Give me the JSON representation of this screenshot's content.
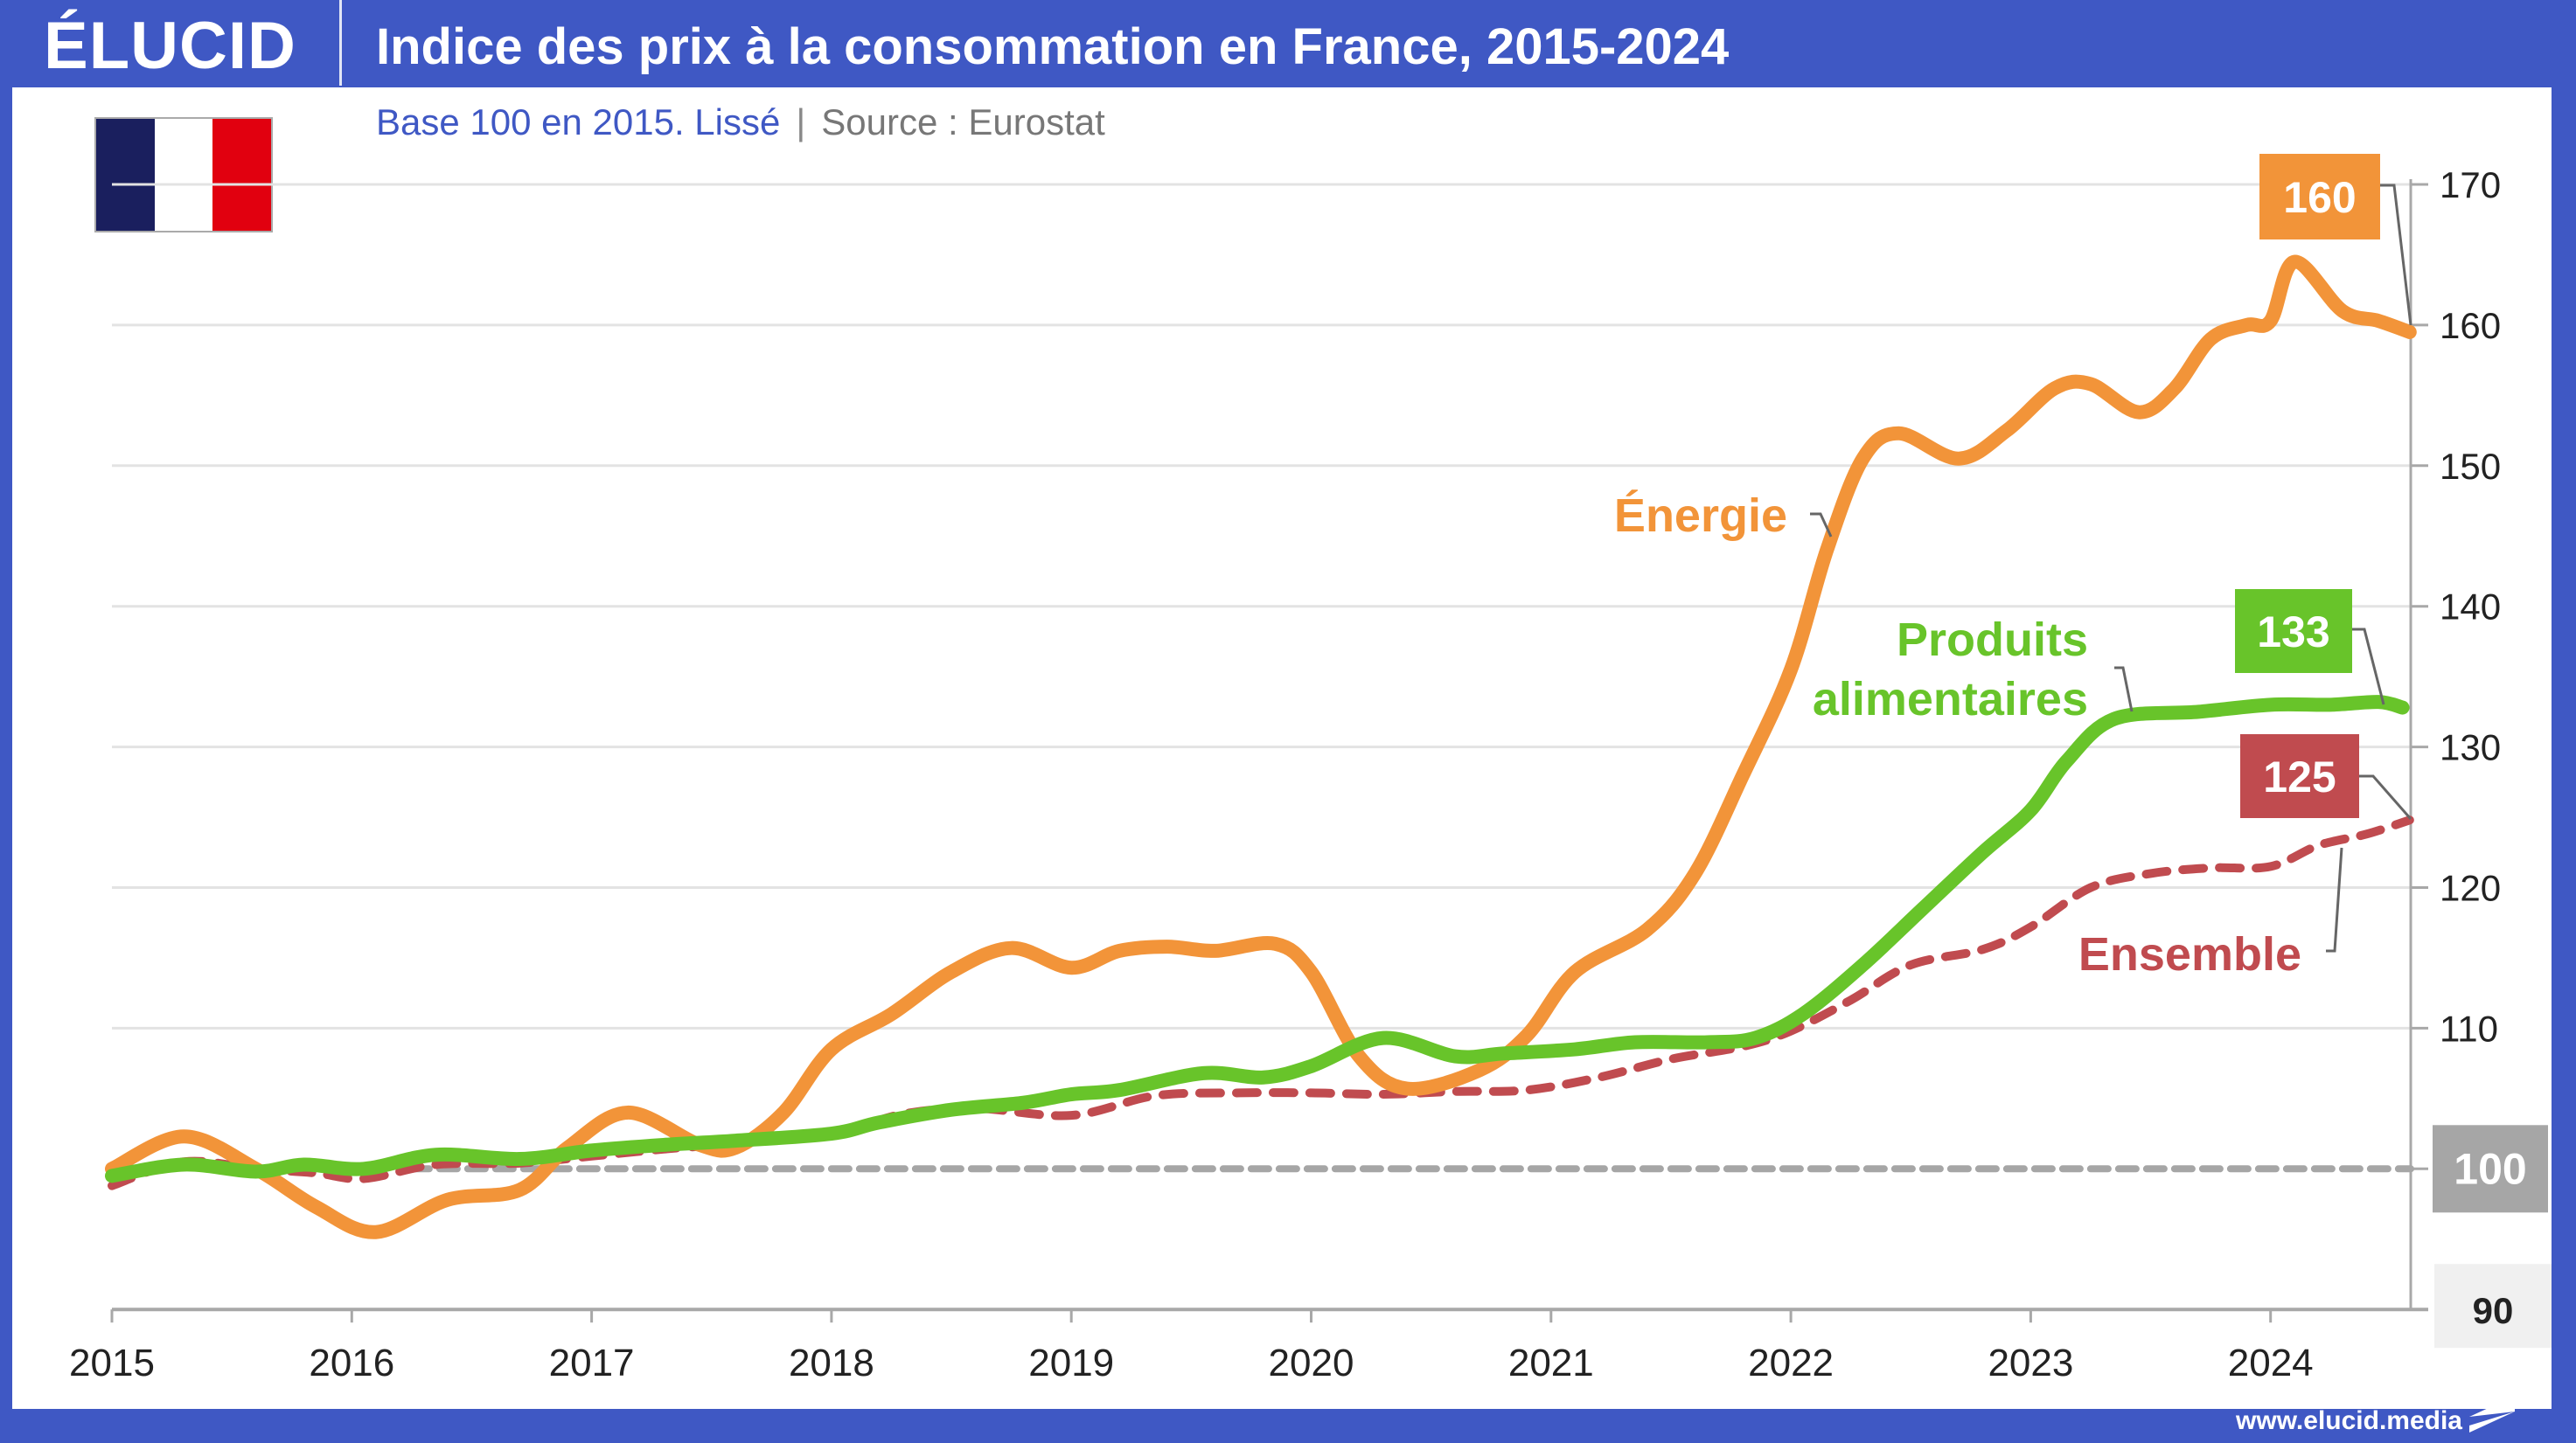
{
  "header": {
    "logo": "ÉLUCID",
    "title": "Indice des prix à la consommation en France, 2015-2024"
  },
  "subtitle": {
    "base": "Base 100 en 2015. Lissé",
    "separator": "|",
    "source": "Source : Eurostat"
  },
  "flag": {
    "country": "France",
    "colors": [
      "#1a1f5e",
      "#ffffff",
      "#e1000f"
    ]
  },
  "footer": {
    "url": "www.elucid.media"
  },
  "colors": {
    "brand": "#3f58c4",
    "energie": "#f29439",
    "alimentaires": "#68c42a",
    "ensemble": "#c04b4f",
    "baseline": "#a6a6a6"
  },
  "chart_data": {
    "type": "line",
    "title": "Indice des prix à la consommation en France, 2015-2024",
    "subtitle": "Base 100 en 2015. Lissé | Source : Eurostat",
    "xlabel": "",
    "ylabel": "",
    "xlim": [
      2015,
      2024.58
    ],
    "ylim": [
      90,
      170
    ],
    "x_ticks": [
      "2015",
      "2016",
      "2017",
      "2018",
      "2019",
      "2020",
      "2021",
      "2022",
      "2023",
      "2024"
    ],
    "y_ticks": [
      "170",
      "160",
      "150",
      "140",
      "130",
      "120",
      "110",
      "100",
      "90"
    ],
    "y_axis_position": "right",
    "grid": true,
    "baseline": {
      "value": 100,
      "label": "100",
      "style": "dashed"
    },
    "y_tick_90_label": "90",
    "series": [
      {
        "name": "Énergie",
        "key": "energie",
        "style": "solid",
        "end_label": "160",
        "x": [
          2015.0,
          2015.3,
          2015.6,
          2015.85,
          2016.1,
          2016.4,
          2016.7,
          2016.9,
          2017.15,
          2017.45,
          2017.6,
          2017.8,
          2018.0,
          2018.25,
          2018.5,
          2018.75,
          2019.0,
          2019.2,
          2019.4,
          2019.6,
          2019.85,
          2020.0,
          2020.2,
          2020.4,
          2020.7,
          2020.9,
          2021.1,
          2021.4,
          2021.6,
          2021.8,
          2022.0,
          2022.15,
          2022.3,
          2022.45,
          2022.7,
          2022.9,
          2023.1,
          2023.25,
          2023.45,
          2023.6,
          2023.75,
          2023.9,
          2024.0,
          2024.1,
          2024.3,
          2024.45,
          2024.58
        ],
        "y": [
          100.0,
          102.3,
          100.0,
          97.3,
          95.5,
          97.8,
          98.5,
          101.5,
          104.0,
          101.7,
          101.5,
          104.0,
          108.5,
          111.0,
          114.0,
          115.7,
          114.3,
          115.5,
          115.8,
          115.5,
          116.0,
          114.0,
          108.0,
          105.7,
          107.0,
          109.5,
          114.0,
          117.0,
          121.0,
          128.0,
          135.5,
          144.0,
          150.5,
          152.3,
          150.5,
          152.5,
          155.5,
          155.8,
          153.8,
          155.5,
          159.0,
          160.0,
          160.3,
          164.5,
          161.0,
          160.3,
          159.5
        ]
      },
      {
        "name": "Produits alimentaires",
        "key": "alimentaires",
        "style": "solid",
        "end_label": "133",
        "x": [
          2015.0,
          2015.3,
          2015.6,
          2015.8,
          2016.05,
          2016.35,
          2016.7,
          2017.0,
          2017.3,
          2017.6,
          2018.0,
          2018.2,
          2018.5,
          2018.8,
          2019.0,
          2019.2,
          2019.55,
          2019.8,
          2020.0,
          2020.3,
          2020.6,
          2020.8,
          2021.1,
          2021.35,
          2021.65,
          2021.85,
          2022.05,
          2022.3,
          2022.55,
          2022.8,
          2023.0,
          2023.15,
          2023.35,
          2023.7,
          2024.0,
          2024.25,
          2024.45,
          2024.55
        ],
        "y": [
          99.5,
          100.3,
          99.8,
          100.3,
          100.0,
          101.0,
          100.7,
          101.3,
          101.7,
          102.0,
          102.5,
          103.3,
          104.2,
          104.7,
          105.3,
          105.6,
          106.8,
          106.5,
          107.3,
          109.3,
          108.0,
          108.2,
          108.5,
          109.0,
          109.0,
          109.3,
          111.0,
          114.5,
          118.5,
          122.5,
          125.5,
          129.0,
          132.0,
          132.5,
          133.0,
          133.0,
          133.2,
          132.8
        ]
      },
      {
        "name": "Ensemble",
        "key": "ensemble",
        "style": "dashed",
        "end_label": "125",
        "x": [
          2015.0,
          2015.3,
          2015.6,
          2015.85,
          2016.05,
          2016.35,
          2016.7,
          2017.0,
          2017.3,
          2017.6,
          2018.0,
          2018.3,
          2018.6,
          2019.0,
          2019.35,
          2019.7,
          2020.0,
          2020.3,
          2020.6,
          2020.9,
          2021.2,
          2021.5,
          2021.8,
          2022.0,
          2022.25,
          2022.5,
          2022.8,
          2023.0,
          2023.25,
          2023.5,
          2023.75,
          2024.0,
          2024.2,
          2024.4,
          2024.58
        ],
        "y": [
          98.8,
          100.5,
          100.0,
          99.7,
          99.3,
          100.3,
          100.4,
          100.9,
          101.4,
          101.8,
          102.5,
          103.9,
          104.3,
          103.8,
          105.2,
          105.4,
          105.4,
          105.3,
          105.5,
          105.6,
          106.5,
          107.8,
          108.7,
          109.8,
          112.0,
          114.5,
          115.6,
          117.2,
          120.0,
          121.0,
          121.4,
          121.5,
          123.0,
          123.8,
          124.8
        ]
      }
    ],
    "annotations": [
      {
        "text": "Énergie",
        "series": "energie"
      },
      {
        "text": "Produits alimentaires",
        "lines": [
          "Produits",
          "alimentaires"
        ],
        "series": "alimentaires"
      },
      {
        "text": "Ensemble",
        "series": "ensemble"
      }
    ]
  }
}
